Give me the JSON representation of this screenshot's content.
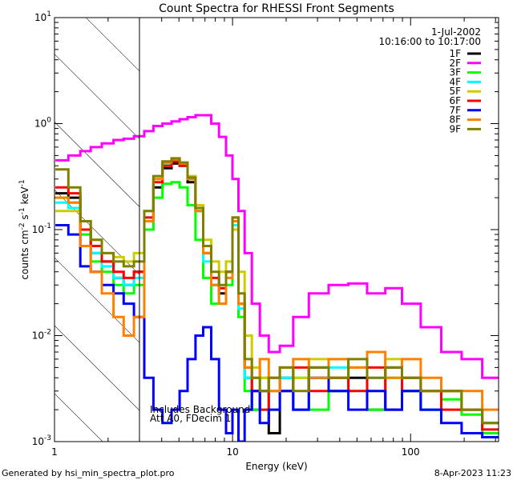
{
  "chart_data": {
    "type": "line",
    "title": "Count Spectra for RHESSI Front Segments",
    "xlabel": "Energy (keV)",
    "ylabel": {
      "base": "counts cm",
      "e1": "-2",
      "mid1": " s",
      "e2": "-1",
      "mid2": " keV",
      "e3": "-1"
    },
    "xscale": "log",
    "yscale": "log",
    "xlim": [
      1,
      312
    ],
    "ylim": [
      0.001,
      10
    ],
    "x_ticks": [
      {
        "value": 1,
        "label": "1"
      },
      {
        "value": 10,
        "label": "10"
      },
      {
        "value": 100,
        "label": "100"
      }
    ],
    "y_ticks": [
      {
        "value": 0.001,
        "base": "10",
        "exp": "-3"
      },
      {
        "value": 0.01,
        "base": "10",
        "exp": "-2"
      },
      {
        "value": 0.1,
        "base": "10",
        "exp": "-1"
      },
      {
        "value": 1,
        "base": "10",
        "exp": "0"
      },
      {
        "value": 10,
        "base": "10",
        "exp": "1"
      }
    ],
    "shaded_region_keV": [
      1,
      3
    ],
    "date": "1-Jul-2002",
    "time_range": "10:16:00 to 10:17:00",
    "annotations": [
      "Includes Background",
      "Att A0, FDecim 1"
    ],
    "legend_position": "top-right",
    "x": [
      1.1,
      1.3,
      1.5,
      1.7,
      2.0,
      2.3,
      2.6,
      3.0,
      3.4,
      3.8,
      4.3,
      4.8,
      5.3,
      5.9,
      6.5,
      7.2,
      8.0,
      8.8,
      9.6,
      10.4,
      11.2,
      12.2,
      13.5,
      15,
      17,
      20,
      24,
      30,
      40,
      50,
      65,
      80,
      100,
      130,
      170,
      220,
      290
    ],
    "series": [
      {
        "name": "1F",
        "color": "#000000",
        "values": [
          0.22,
          0.2,
          0.1,
          0.06,
          0.05,
          0.035,
          0.03,
          0.04,
          0.12,
          0.25,
          0.38,
          0.42,
          0.4,
          0.28,
          0.15,
          0.06,
          0.03,
          0.025,
          0.04,
          0.12,
          0.02,
          0.004,
          0.002,
          0.003,
          0.0012,
          0.004,
          0.002,
          0.005,
          0.003,
          0.004,
          0.002,
          0.005,
          0.003,
          0.002,
          0.003,
          0.002,
          0.0015
        ]
      },
      {
        "name": "2F",
        "color": "#ff00ff",
        "values": [
          0.45,
          0.5,
          0.55,
          0.6,
          0.65,
          0.7,
          0.72,
          0.76,
          0.85,
          0.95,
          1.0,
          1.05,
          1.1,
          1.15,
          1.2,
          1.2,
          1.0,
          0.75,
          0.5,
          0.3,
          0.15,
          0.06,
          0.02,
          0.01,
          0.007,
          0.008,
          0.015,
          0.025,
          0.03,
          0.031,
          0.025,
          0.028,
          0.02,
          0.012,
          0.007,
          0.006,
          0.004
        ]
      },
      {
        "name": "3F",
        "color": "#00ff00",
        "values": [
          0.2,
          0.18,
          0.09,
          0.05,
          0.04,
          0.03,
          0.025,
          0.03,
          0.1,
          0.2,
          0.27,
          0.28,
          0.25,
          0.17,
          0.08,
          0.035,
          0.02,
          0.02,
          0.03,
          0.1,
          0.015,
          0.003,
          0.002,
          0.004,
          0.002,
          0.003,
          0.004,
          0.002,
          0.003,
          0.005,
          0.002,
          0.004,
          0.003,
          0.002,
          0.0025,
          0.0018,
          0.0012
        ]
      },
      {
        "name": "4F",
        "color": "#00ffff",
        "values": [
          0.18,
          0.16,
          0.1,
          0.06,
          0.045,
          0.035,
          0.03,
          0.035,
          0.13,
          0.3,
          0.42,
          0.45,
          0.4,
          0.3,
          0.15,
          0.05,
          0.03,
          0.02,
          0.035,
          0.11,
          0.018,
          0.004,
          0.003,
          0.002,
          0.003,
          0.004,
          0.002,
          0.004,
          0.005,
          0.003,
          0.004,
          0.002,
          0.004,
          0.002,
          0.003,
          0.002,
          0.0015
        ]
      },
      {
        "name": "5F",
        "color": "#cccc00",
        "values": [
          0.15,
          0.15,
          0.12,
          0.08,
          0.06,
          0.055,
          0.05,
          0.06,
          0.15,
          0.3,
          0.4,
          0.45,
          0.42,
          0.32,
          0.17,
          0.08,
          0.05,
          0.04,
          0.05,
          0.1,
          0.04,
          0.01,
          0.005,
          0.004,
          0.003,
          0.005,
          0.004,
          0.006,
          0.004,
          0.005,
          0.003,
          0.006,
          0.004,
          0.003,
          0.003,
          0.002,
          0.0015
        ]
      },
      {
        "name": "6F",
        "color": "#ff0000",
        "values": [
          0.25,
          0.22,
          0.1,
          0.07,
          0.05,
          0.04,
          0.035,
          0.04,
          0.13,
          0.28,
          0.4,
          0.44,
          0.4,
          0.3,
          0.16,
          0.07,
          0.035,
          0.028,
          0.04,
          0.13,
          0.02,
          0.005,
          0.003,
          0.002,
          0.004,
          0.003,
          0.005,
          0.003,
          0.004,
          0.003,
          0.005,
          0.002,
          0.004,
          0.003,
          0.002,
          0.002,
          0.0013
        ]
      },
      {
        "name": "7F",
        "color": "#0000ff",
        "values": [
          0.11,
          0.09,
          0.045,
          0.04,
          0.03,
          0.025,
          0.02,
          0.015,
          0.004,
          0.002,
          0.0015,
          0.002,
          0.003,
          0.006,
          0.01,
          0.012,
          0.006,
          0.002,
          0.0012,
          0.002,
          0.001,
          0.002,
          0.003,
          0.0015,
          0.002,
          0.003,
          0.002,
          0.004,
          0.003,
          0.002,
          0.003,
          0.002,
          0.003,
          0.002,
          0.0015,
          0.0012,
          0.0011
        ]
      },
      {
        "name": "8F",
        "color": "#ff8000",
        "values": [
          0.2,
          0.18,
          0.07,
          0.04,
          0.025,
          0.015,
          0.01,
          0.015,
          0.12,
          0.3,
          0.43,
          0.46,
          0.42,
          0.3,
          0.15,
          0.06,
          0.03,
          0.02,
          0.035,
          0.12,
          0.02,
          0.005,
          0.004,
          0.006,
          0.003,
          0.005,
          0.006,
          0.004,
          0.006,
          0.005,
          0.007,
          0.004,
          0.006,
          0.004,
          0.003,
          0.003,
          0.002
        ]
      },
      {
        "name": "9F",
        "color": "#808000",
        "values": [
          0.37,
          0.25,
          0.12,
          0.08,
          0.06,
          0.05,
          0.045,
          0.05,
          0.15,
          0.32,
          0.44,
          0.47,
          0.43,
          0.31,
          0.16,
          0.07,
          0.04,
          0.03,
          0.04,
          0.13,
          0.025,
          0.006,
          0.004,
          0.003,
          0.004,
          0.005,
          0.003,
          0.005,
          0.004,
          0.006,
          0.004,
          0.005,
          0.004,
          0.003,
          0.003,
          0.002,
          0.0015
        ]
      }
    ]
  },
  "footer": {
    "left": "Generated by hsi_min_spectra_plot.pro",
    "right": "8-Apr-2023 11:23"
  }
}
